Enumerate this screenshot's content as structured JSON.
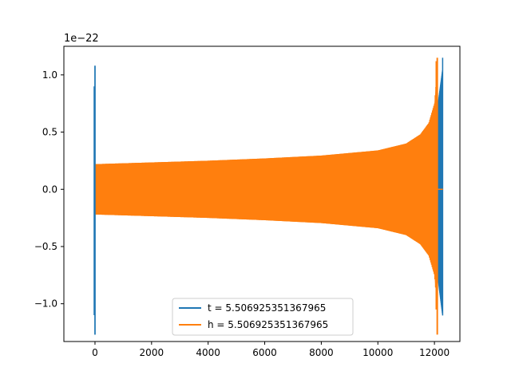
{
  "chart_data": {
    "type": "line",
    "title": "",
    "xlabel": "",
    "ylabel": "",
    "offset_label": "1e−22",
    "xlim": [
      -1100,
      12900
    ],
    "ylim": [
      -1.33,
      1.25
    ],
    "x_ticks": [
      0,
      2000,
      4000,
      6000,
      8000,
      10000,
      12000
    ],
    "x_tick_labels": [
      "0",
      "2000",
      "4000",
      "6000",
      "8000",
      "10000",
      "12000"
    ],
    "y_ticks": [
      -1.0,
      -0.5,
      0.0,
      0.5,
      1.0
    ],
    "y_tick_labels": [
      "−1.0",
      "−0.5",
      "0.0",
      "0.5",
      "1.0"
    ],
    "grid": false,
    "legend_position": "bottom-center",
    "series": [
      {
        "name": "t = 5.506925351367965",
        "color": "#1f77b4",
        "description_points": [
          {
            "x": 0,
            "y_min": -1.27,
            "y_max": 1.08
          },
          {
            "x": 12100,
            "y_min": -0.85,
            "y_max": 0.65
          },
          {
            "x": 12200,
            "y_min": -0.95,
            "y_max": 0.75
          },
          {
            "x": 12290,
            "y_min": -1.0,
            "y_max": 1.15
          }
        ]
      },
      {
        "name": "h = 5.506925351367965",
        "color": "#ff7f0e",
        "envelope": [
          {
            "x": 0,
            "amp": 0.22
          },
          {
            "x": 2000,
            "amp": 0.235
          },
          {
            "x": 4000,
            "amp": 0.25
          },
          {
            "x": 6000,
            "amp": 0.27
          },
          {
            "x": 8000,
            "amp": 0.295
          },
          {
            "x": 10000,
            "amp": 0.34
          },
          {
            "x": 11000,
            "amp": 0.4
          },
          {
            "x": 11500,
            "amp": 0.48
          },
          {
            "x": 11800,
            "amp": 0.58
          },
          {
            "x": 12000,
            "amp": 0.75
          },
          {
            "x": 12100,
            "amp": 1.05
          }
        ],
        "spike_x": 12100,
        "spike_min": -1.27,
        "spike_max": 1.15,
        "end_x": 12100
      }
    ]
  }
}
